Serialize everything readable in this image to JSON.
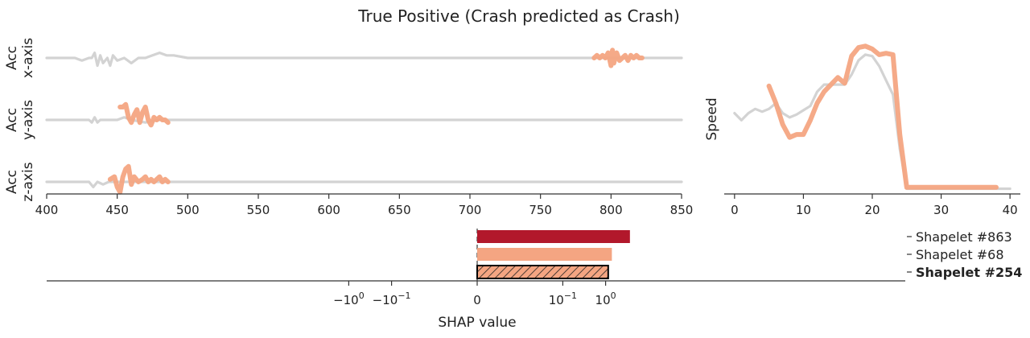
{
  "chart_data": [
    {
      "type": "line",
      "title": "True Positive (Crash predicted as Crash)",
      "xlim": [
        400,
        850
      ],
      "xticks": [
        400,
        450,
        500,
        550,
        600,
        650,
        700,
        750,
        800,
        850
      ],
      "colors": {
        "background": "#d3d3d3",
        "highlight": "#f4a582"
      },
      "panels": [
        {
          "ylabel": [
            "Acc",
            "x-axis"
          ],
          "background": [
            [
              400,
              0
            ],
            [
              420,
              0
            ],
            [
              425,
              -1
            ],
            [
              430,
              0
            ],
            [
              432,
              0
            ],
            [
              434,
              2
            ],
            [
              436,
              -3
            ],
            [
              438,
              1
            ],
            [
              440,
              -2
            ],
            [
              443,
              0
            ],
            [
              445,
              -3
            ],
            [
              447,
              1
            ],
            [
              450,
              -1
            ],
            [
              455,
              0
            ],
            [
              460,
              -2
            ],
            [
              465,
              0
            ],
            [
              470,
              0
            ],
            [
              475,
              1
            ],
            [
              480,
              2
            ],
            [
              485,
              1
            ],
            [
              490,
              1
            ],
            [
              500,
              0
            ],
            [
              520,
              0
            ],
            [
              560,
              0
            ],
            [
              600,
              0
            ],
            [
              650,
              0
            ],
            [
              700,
              0
            ],
            [
              750,
              0
            ],
            [
              790,
              0
            ],
            [
              800,
              0
            ],
            [
              810,
              0
            ],
            [
              820,
              0
            ],
            [
              835,
              0
            ],
            [
              850,
              0
            ]
          ],
          "highlights": [
            {
              "shapelet": "Shapelet #863",
              "points": [
                [
                  788,
                  0
                ],
                [
                  790,
                  1
                ],
                [
                  792,
                  0
                ],
                [
                  794,
                  1
                ],
                [
                  796,
                  0
                ],
                [
                  798,
                  2
                ],
                [
                  800,
                  -3
                ],
                [
                  801,
                  3
                ],
                [
                  802,
                  -2
                ],
                [
                  804,
                  2
                ],
                [
                  806,
                  -1
                ],
                [
                  808,
                  0
                ],
                [
                  810,
                  1
                ],
                [
                  812,
                  -1
                ],
                [
                  814,
                  1
                ],
                [
                  816,
                  0
                ],
                [
                  818,
                  1
                ],
                [
                  820,
                  0
                ],
                [
                  822,
                  0
                ]
              ]
            }
          ]
        },
        {
          "ylabel": [
            "Acc",
            "y-axis"
          ],
          "background": [
            [
              400,
              0
            ],
            [
              420,
              0
            ],
            [
              430,
              0
            ],
            [
              432,
              -1
            ],
            [
              434,
              1
            ],
            [
              436,
              -1
            ],
            [
              438,
              0
            ],
            [
              440,
              0
            ],
            [
              450,
              0
            ],
            [
              455,
              1
            ],
            [
              460,
              0
            ],
            [
              470,
              -1
            ],
            [
              480,
              0
            ],
            [
              490,
              0
            ],
            [
              500,
              0
            ],
            [
              550,
              0
            ],
            [
              600,
              0
            ],
            [
              650,
              0
            ],
            [
              700,
              0
            ],
            [
              750,
              0
            ],
            [
              800,
              0
            ],
            [
              850,
              0
            ]
          ],
          "highlights": [
            {
              "shapelet": "Shapelet #68",
              "points": [
                [
                  452,
                  5
                ],
                [
                  454,
                  5
                ],
                [
                  456,
                  6
                ],
                [
                  458,
                  1
                ],
                [
                  460,
                  -1
                ],
                [
                  462,
                  2
                ],
                [
                  464,
                  4
                ],
                [
                  466,
                  -1
                ],
                [
                  468,
                  3
                ],
                [
                  470,
                  5
                ],
                [
                  472,
                  0
                ],
                [
                  474,
                  -2
                ],
                [
                  476,
                  1
                ],
                [
                  478,
                  0
                ],
                [
                  480,
                  1
                ],
                [
                  482,
                  0
                ],
                [
                  484,
                  0
                ],
                [
                  486,
                  -1
                ]
              ]
            }
          ]
        },
        {
          "ylabel": [
            "Acc",
            "z-axis"
          ],
          "background": [
            [
              400,
              0
            ],
            [
              420,
              0
            ],
            [
              430,
              0
            ],
            [
              433,
              -2
            ],
            [
              436,
              0
            ],
            [
              440,
              -1
            ],
            [
              444,
              0
            ],
            [
              450,
              0
            ],
            [
              470,
              0
            ],
            [
              480,
              0
            ],
            [
              500,
              0
            ],
            [
              550,
              0
            ],
            [
              600,
              0
            ],
            [
              650,
              0
            ],
            [
              700,
              0
            ],
            [
              750,
              0
            ],
            [
              800,
              0
            ],
            [
              850,
              0
            ]
          ],
          "highlights": [
            {
              "shapelet": "Shapelet #254",
              "points": [
                [
                  445,
                  1
                ],
                [
                  448,
                  2
                ],
                [
                  450,
                  -2
                ],
                [
                  452,
                  -4
                ],
                [
                  454,
                  2
                ],
                [
                  456,
                  5
                ],
                [
                  458,
                  6
                ],
                [
                  460,
                  -1
                ],
                [
                  462,
                  2
                ],
                [
                  465,
                  0
                ],
                [
                  468,
                  1
                ],
                [
                  470,
                  2
                ],
                [
                  472,
                  0
                ],
                [
                  474,
                  1
                ],
                [
                  476,
                  0
                ],
                [
                  478,
                  1
                ],
                [
                  480,
                  2
                ],
                [
                  482,
                  0
                ],
                [
                  484,
                  1
                ],
                [
                  486,
                  0
                ]
              ]
            }
          ]
        }
      ]
    },
    {
      "type": "line",
      "ylabel": "Speed",
      "xlim": [
        -1.5,
        41.5
      ],
      "ylim": [
        0,
        105
      ],
      "xticks": [
        0,
        10,
        20,
        30,
        40
      ],
      "background": [
        [
          0,
          55
        ],
        [
          1,
          50
        ],
        [
          2,
          55
        ],
        [
          3,
          58
        ],
        [
          4,
          56
        ],
        [
          5,
          58
        ],
        [
          6,
          62
        ],
        [
          7,
          55
        ],
        [
          8,
          52
        ],
        [
          9,
          54
        ],
        [
          10,
          57
        ],
        [
          11,
          60
        ],
        [
          12,
          70
        ],
        [
          13,
          75
        ],
        [
          14,
          75
        ],
        [
          15,
          75
        ],
        [
          16,
          75
        ],
        [
          17,
          82
        ],
        [
          18,
          92
        ],
        [
          19,
          96
        ],
        [
          20,
          95
        ],
        [
          21,
          88
        ],
        [
          22,
          78
        ],
        [
          23,
          68
        ],
        [
          24,
          30
        ],
        [
          25,
          2
        ],
        [
          26,
          2
        ],
        [
          30,
          2
        ],
        [
          35,
          2
        ],
        [
          40,
          2
        ]
      ],
      "highlights": [
        {
          "shapelet": "Shapelet #68",
          "points": [
            [
              5,
              74
            ],
            [
              6,
              62
            ],
            [
              7,
              47
            ],
            [
              8,
              38
            ],
            [
              9,
              40
            ],
            [
              10,
              40
            ],
            [
              11,
              50
            ],
            [
              12,
              62
            ],
            [
              13,
              70
            ],
            [
              14,
              75
            ],
            [
              15,
              80
            ],
            [
              16,
              76
            ],
            [
              17,
              95
            ],
            [
              18,
              101
            ],
            [
              19,
              102
            ],
            [
              20,
              100
            ],
            [
              21,
              96
            ],
            [
              22,
              97
            ],
            [
              23,
              96
            ],
            [
              24,
              40
            ],
            [
              25,
              3
            ],
            [
              26,
              3
            ],
            [
              30,
              3
            ],
            [
              35,
              3
            ],
            [
              38,
              3
            ]
          ]
        }
      ]
    },
    {
      "type": "bar",
      "orientation": "horizontal",
      "xlabel": "SHAP value",
      "xscale": "symlog",
      "linthresh": 0.01,
      "xlim": [
        -30,
        5
      ],
      "xticks": [
        {
          "value": -1,
          "base": "−10",
          "exp": "0"
        },
        {
          "value": -0.1,
          "base": "−10",
          "exp": "−1"
        },
        {
          "value": 0,
          "base": "0",
          "exp": ""
        },
        {
          "value": 0.1,
          "base": "10",
          "exp": "−1"
        },
        {
          "value": 1,
          "base": "10",
          "exp": "0"
        }
      ],
      "categories": [
        "Shapelet #863",
        "Shapelet #68",
        "Shapelet #254"
      ],
      "values": [
        3.7,
        1.4,
        1.15
      ],
      "colors": [
        "#b2182b",
        "#f4a582",
        "#f4a582"
      ],
      "hatched": [
        false,
        false,
        true
      ],
      "bold": [
        false,
        false,
        true
      ]
    }
  ]
}
